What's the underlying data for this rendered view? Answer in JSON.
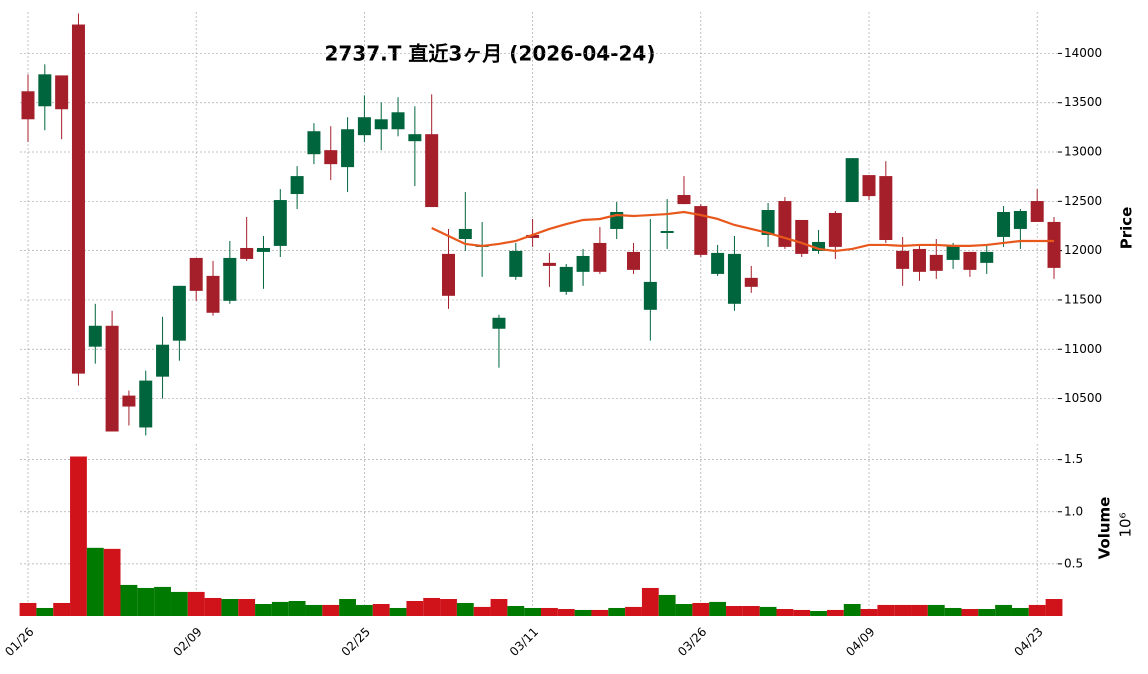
{
  "chart_data": {
    "type": "candlestick",
    "title": "2737.T  直近3ヶ月  (2026-04-24)",
    "ylabel": "Price",
    "volume_label": "Volume",
    "volume_scale": "10⁶",
    "categories": [
      "01/26",
      null,
      null,
      null,
      null,
      null,
      null,
      null,
      null,
      null,
      "02/09",
      null,
      null,
      null,
      null,
      null,
      null,
      null,
      null,
      null,
      "02/25",
      null,
      null,
      null,
      null,
      null,
      null,
      null,
      null,
      null,
      "03/11",
      null,
      null,
      null,
      null,
      null,
      null,
      null,
      null,
      null,
      "03/26",
      null,
      null,
      null,
      null,
      null,
      null,
      null,
      null,
      null,
      "04/09",
      null,
      null,
      null,
      null,
      null,
      null,
      null,
      null,
      null,
      "04/23",
      null
    ],
    "open": [
      13616,
      13464,
      13777,
      14293,
      11026,
      11238,
      10530,
      10207,
      10722,
      11087,
      11926,
      11744,
      11491,
      12027,
      11987,
      12048,
      12574,
      12978,
      13019,
      12847,
      13171,
      13231,
      13231,
      13110,
      13181,
      11967,
      12118,
      12038,
      11208,
      11734,
      12159,
      11876,
      11582,
      11785,
      12078,
      12220,
      11987,
      11400,
      12179,
      12564,
      12452,
      11764,
      11461,
      11724,
      12159,
      12503,
      12311,
      11997,
      12382,
      12493,
      12766,
      12756,
      11997,
      12017,
      11957,
      11906,
      11987,
      11876,
      12139,
      12220,
      12503,
      12291
    ],
    "high": [
      13788,
      13889,
      13777,
      14405,
      11461,
      11390,
      10581,
      10783,
      11329,
      11643,
      11926,
      11896,
      12098,
      12341,
      12149,
      12624,
      12857,
      13292,
      13262,
      13353,
      13575,
      13504,
      13555,
      13464,
      13585,
      12220,
      12594,
      12290,
      11350,
      12078,
      12321,
      11977,
      11865,
      12017,
      12240,
      12493,
      12078,
      12321,
      12523,
      12756,
      12472,
      12058,
      12149,
      11845,
      12483,
      12543,
      12311,
      12209,
      12402,
      12938,
      12766,
      12907,
      12139,
      12058,
      12118,
      12078,
      11987,
      12048,
      12452,
      12422,
      12624,
      12341
    ],
    "low": [
      13100,
      13221,
      13130,
      10631,
      10854,
      10166,
      10227,
      10126,
      10500,
      10884,
      11491,
      11340,
      11461,
      11896,
      11613,
      11936,
      12422,
      12877,
      12715,
      12594,
      13100,
      13019,
      13160,
      12655,
      12442,
      11410,
      11997,
      11734,
      10813,
      11704,
      12038,
      11633,
      11552,
      11643,
      11764,
      12118,
      11764,
      11087,
      12017,
      12472,
      11936,
      11744,
      11390,
      11572,
      12038,
      12017,
      11936,
      11967,
      11916,
      12493,
      12513,
      12078,
      11643,
      11694,
      11714,
      11815,
      11734,
      11764,
      12038,
      12017,
      12291,
      11714
    ],
    "close": [
      13332,
      13788,
      13434,
      10753,
      11238,
      10166,
      10419,
      10682,
      11046,
      11643,
      11592,
      11370,
      11926,
      11916,
      12027,
      12513,
      12756,
      13211,
      12877,
      13231,
      13353,
      13332,
      13403,
      13181,
      12442,
      11542,
      12220,
      12048,
      11319,
      11997,
      12129,
      11845,
      11835,
      11946,
      11785,
      12392,
      11805,
      11683,
      12199,
      12472,
      11957,
      11977,
      11967,
      11633,
      12412,
      12038,
      11967,
      12088,
      12038,
      12938,
      12553,
      12108,
      11815,
      11785,
      11795,
      12048,
      11805,
      11987,
      12392,
      12402,
      12291,
      11825
    ],
    "volume": [
      0.125,
      0.077,
      0.125,
      1.53,
      0.654,
      0.644,
      0.298,
      0.269,
      0.279,
      0.231,
      0.231,
      0.173,
      0.163,
      0.163,
      0.115,
      0.135,
      0.144,
      0.106,
      0.106,
      0.163,
      0.106,
      0.115,
      0.077,
      0.144,
      0.173,
      0.163,
      0.125,
      0.087,
      0.163,
      0.096,
      0.077,
      0.077,
      0.067,
      0.058,
      0.058,
      0.077,
      0.087,
      0.269,
      0.202,
      0.115,
      0.125,
      0.135,
      0.096,
      0.096,
      0.087,
      0.067,
      0.058,
      0.048,
      0.058,
      0.115,
      0.067,
      0.106,
      0.106,
      0.106,
      0.106,
      0.077,
      0.067,
      0.067,
      0.106,
      0.077,
      0.106,
      0.163
    ],
    "ma": {
      "color": "#e8581c",
      "values": [
        null,
        null,
        null,
        null,
        null,
        null,
        null,
        null,
        null,
        null,
        null,
        null,
        null,
        null,
        null,
        null,
        null,
        null,
        null,
        null,
        null,
        null,
        null,
        null,
        12230,
        12149,
        12068,
        12048,
        12068,
        12098,
        12159,
        12220,
        12270,
        12311,
        12321,
        12361,
        12351,
        12361,
        12371,
        12392,
        12361,
        12321,
        12260,
        12220,
        12179,
        12129,
        12078,
        12017,
        11997,
        12017,
        12058,
        12058,
        12048,
        12058,
        12058,
        12048,
        12048,
        12058,
        12078,
        12098,
        12098,
        12098
      ]
    },
    "up_color": "#00643c",
    "down_color": "#a51f2a",
    "volume_up_color": "#007a00",
    "volume_down_color": "#d0121b",
    "ylim": [
      10100,
      14420
    ],
    "yticks": [
      10500,
      11000,
      11500,
      12000,
      12500,
      13000,
      13500,
      14000
    ],
    "volume_ylim": [
      0,
      1.65
    ],
    "volume_ticks": [
      0.5,
      {
        "value": 1,
        "label": "1.0"
      },
      1.5
    ],
    "grid": true
  }
}
